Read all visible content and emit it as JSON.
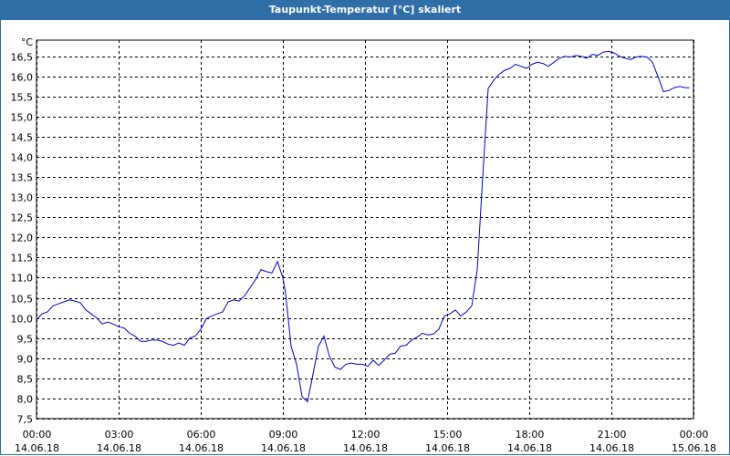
{
  "window": {
    "title": "Taupunkt-Temperatur [°C] skaliert"
  },
  "chart_data": {
    "type": "line",
    "title": "Taupunkt-Temperatur [°C] skaliert",
    "y_unit": "°C",
    "ylim": [
      7.5,
      16.9
    ],
    "y_ticks": [
      "7,5",
      "8,0",
      "8,5",
      "9,0",
      "9,5",
      "10,0",
      "10,5",
      "11,0",
      "11,5",
      "12,0",
      "12,5",
      "13,0",
      "13,5",
      "14,0",
      "14,5",
      "15,0",
      "15,5",
      "16,0",
      "16,5"
    ],
    "y_tick_values": [
      7.5,
      8.0,
      8.5,
      9.0,
      9.5,
      10.0,
      10.5,
      11.0,
      11.5,
      12.0,
      12.5,
      13.0,
      13.5,
      14.0,
      14.5,
      15.0,
      15.5,
      16.0,
      16.5
    ],
    "xlim": [
      0,
      24
    ],
    "x_ticks": [
      {
        "time": "00:00",
        "date": "14.06.18"
      },
      {
        "time": "03:00",
        "date": "14.06.18"
      },
      {
        "time": "06:00",
        "date": "14.06.18"
      },
      {
        "time": "09:00",
        "date": "14.06.18"
      },
      {
        "time": "12:00",
        "date": "14.06.18"
      },
      {
        "time": "15:00",
        "date": "14.06.18"
      },
      {
        "time": "18:00",
        "date": "14.06.18"
      },
      {
        "time": "21:00",
        "date": "14.06.18"
      },
      {
        "time": "00:00",
        "date": "15.06.18"
      }
    ],
    "grid": true,
    "line_color": "#0000cc",
    "series": [
      {
        "x": [
          0,
          0.2,
          0.4,
          0.6,
          0.8,
          1.0,
          1.2,
          1.4,
          1.6,
          1.8,
          2.0,
          2.2,
          2.4,
          2.6,
          2.8,
          3.0,
          3.2,
          3.4,
          3.6,
          3.8,
          4.0,
          4.2,
          4.4,
          4.6,
          4.8,
          5.0,
          5.2,
          5.4,
          5.6,
          5.8,
          6.0,
          6.2,
          6.4,
          6.6,
          6.8,
          7.0,
          7.2,
          7.4,
          7.6,
          7.8,
          8.0,
          8.2,
          8.4,
          8.6,
          8.8,
          9.0,
          9.1,
          9.3,
          9.5,
          9.7,
          9.9,
          10.1,
          10.3,
          10.5,
          10.7,
          10.9,
          11.1,
          11.3,
          11.5,
          11.7,
          11.9,
          12.1,
          12.3,
          12.5,
          12.7,
          12.9,
          13.1,
          13.3,
          13.5,
          13.7,
          13.9,
          14.1,
          14.3,
          14.5,
          14.7,
          14.9,
          15.1,
          15.3,
          15.5,
          15.7,
          15.9,
          16.1,
          16.3,
          16.5,
          16.7,
          16.9,
          17.1,
          17.3,
          17.5,
          17.7,
          17.9,
          18.1,
          18.3,
          18.5,
          18.7,
          18.9,
          19.1,
          19.3,
          19.5,
          19.7,
          19.9,
          20.1,
          20.3,
          20.5,
          20.7,
          20.9,
          21.1,
          21.3,
          21.5,
          21.7,
          21.9,
          22.1,
          22.3,
          22.5,
          22.7,
          22.9,
          23.1,
          23.3,
          23.5,
          23.7,
          23.85
        ],
        "y": [
          9.95,
          10.1,
          10.15,
          10.3,
          10.35,
          10.4,
          10.45,
          10.42,
          10.38,
          10.2,
          10.1,
          10.0,
          9.85,
          9.9,
          9.85,
          9.78,
          9.75,
          9.62,
          9.55,
          9.42,
          9.42,
          9.45,
          9.45,
          9.42,
          9.35,
          9.32,
          9.38,
          9.32,
          9.5,
          9.55,
          9.72,
          9.98,
          10.05,
          10.1,
          10.15,
          10.4,
          10.45,
          10.42,
          10.55,
          10.75,
          10.95,
          11.2,
          11.15,
          11.12,
          11.4,
          11.0,
          10.6,
          9.3,
          8.85,
          8.05,
          7.92,
          8.6,
          9.3,
          9.55,
          9.05,
          8.78,
          8.72,
          8.85,
          8.88,
          8.85,
          8.85,
          8.8,
          8.95,
          8.82,
          8.95,
          9.1,
          9.12,
          9.3,
          9.32,
          9.45,
          9.52,
          9.62,
          9.58,
          9.6,
          9.72,
          10.05,
          10.1,
          10.2,
          10.05,
          10.15,
          10.3,
          11.2,
          13.5,
          15.7,
          15.9,
          16.05,
          16.15,
          16.2,
          16.3,
          16.25,
          16.2,
          16.3,
          16.35,
          16.32,
          16.25,
          16.35,
          16.45,
          16.5,
          16.48,
          16.52,
          16.5,
          16.45,
          16.55,
          16.52,
          16.6,
          16.62,
          16.58,
          16.5,
          16.45,
          16.42,
          16.48,
          16.5,
          16.48,
          16.35,
          16.0,
          15.62,
          15.65,
          15.72,
          15.75,
          15.72,
          15.72
        ]
      }
    ]
  }
}
